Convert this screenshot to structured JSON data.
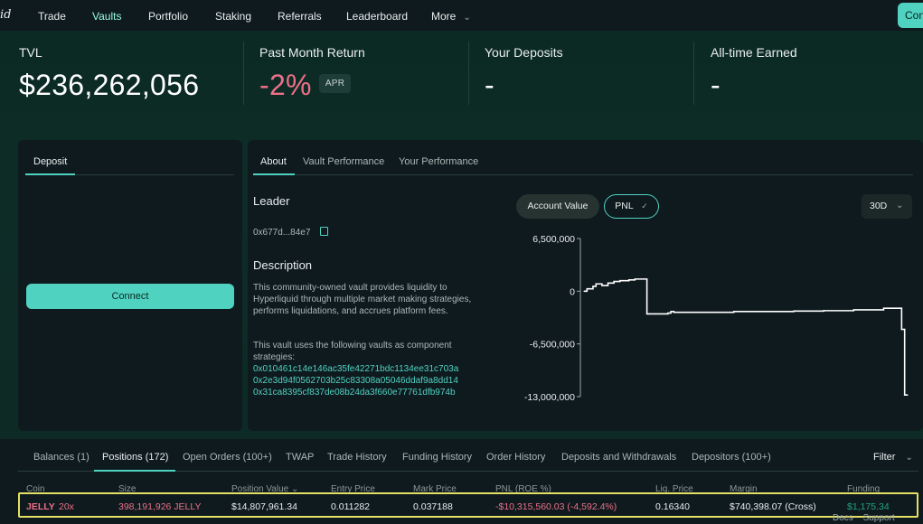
{
  "nav": {
    "logo_text": "id",
    "items": [
      {
        "label": "Trade"
      },
      {
        "label": "Vaults"
      },
      {
        "label": "Portfolio"
      },
      {
        "label": "Staking"
      },
      {
        "label": "Referrals"
      },
      {
        "label": "Leaderboard"
      },
      {
        "label": "More"
      }
    ],
    "connect_label": "Connect"
  },
  "stats": {
    "tvl_label": "TVL",
    "tvl_value": "$236,262,056",
    "return_label": "Past Month Return",
    "return_value": "-2%",
    "return_badge": "APR",
    "deposits_label": "Your Deposits",
    "deposits_value": "-",
    "earned_label": "All-time Earned",
    "earned_value": "-"
  },
  "deposit_panel": {
    "tab": "Deposit",
    "connect_label": "Connect"
  },
  "info_panel": {
    "tabs": [
      "About",
      "Vault Performance",
      "Your Performance"
    ],
    "leader_label": "Leader",
    "leader_address": "0x677d...84e7",
    "description_label": "Description",
    "description_text": "This community-owned vault provides liquidity to Hyperliquid through multiple market making strategies, performs liquidations, and accrues platform fees.",
    "component_intro": "This vault uses the following vaults as component strategies:",
    "component_vaults": [
      "0x010461c14e146ac35fe42271bdc1134ee31c703a",
      "0x2e3d94f0562703b25c83308a05046ddaf9a8dd14",
      "0x31ca8395cf837de08b24da3f660e77761dfb974b"
    ],
    "account_value_label": "Account Value",
    "pnl_label": "PNL",
    "range_label": "30D"
  },
  "chart_data": {
    "type": "line",
    "yticks": [
      "6,500,000",
      "0",
      "-6,500,000",
      "-13,000,000"
    ],
    "ylim": [
      -13000000,
      6500000
    ],
    "x": [
      0,
      1,
      3,
      4,
      6,
      8,
      10,
      12,
      15,
      17,
      20,
      21,
      28,
      29,
      30,
      33,
      40,
      50,
      60,
      70,
      80,
      90,
      100,
      105,
      106,
      107,
      108
    ],
    "values": [
      0,
      300000,
      600000,
      900000,
      700000,
      1000000,
      1200000,
      1300000,
      1400000,
      1500000,
      1500000,
      -2800000,
      -2700000,
      -2500000,
      -2600000,
      -2600000,
      -2600000,
      -2500000,
      -2500000,
      -2450000,
      -2400000,
      -2300000,
      -2100000,
      -2100000,
      -4700000,
      -12800000,
      -12800000
    ],
    "colors": {
      "line": "#ffffff",
      "axis": "#9aa8a6"
    }
  },
  "bottom_tabs": [
    "Balances (1)",
    "Positions (172)",
    "Open Orders (100+)",
    "TWAP",
    "Trade History",
    "Funding History",
    "Order History",
    "Deposits and Withdrawals",
    "Depositors (100+)"
  ],
  "filter_label": "Filter",
  "table": {
    "headers": [
      "Coin",
      "Size",
      "Position Value",
      "Entry Price",
      "Mark Price",
      "PNL (ROE %)",
      "Liq. Price",
      "Margin",
      "Funding"
    ],
    "row": {
      "coin": "JELLY",
      "leverage": "20x",
      "size": "398,191,926 JELLY",
      "position_value": "$14,807,961.34",
      "entry_price": "0.011282",
      "mark_price": "0.037188",
      "pnl": "-$10,315,560.03 (-4,592.4%)",
      "liq_price": "0.16340",
      "margin": "$740,398.07 (Cross)",
      "funding": "$1,175.34"
    }
  },
  "footer": {
    "docs": "Docs",
    "support": "Support"
  },
  "colors": {
    "accent": "#50d2c1",
    "negative": "#ed7088",
    "positive": "#1fa67d",
    "highlight": "#e6df66"
  }
}
